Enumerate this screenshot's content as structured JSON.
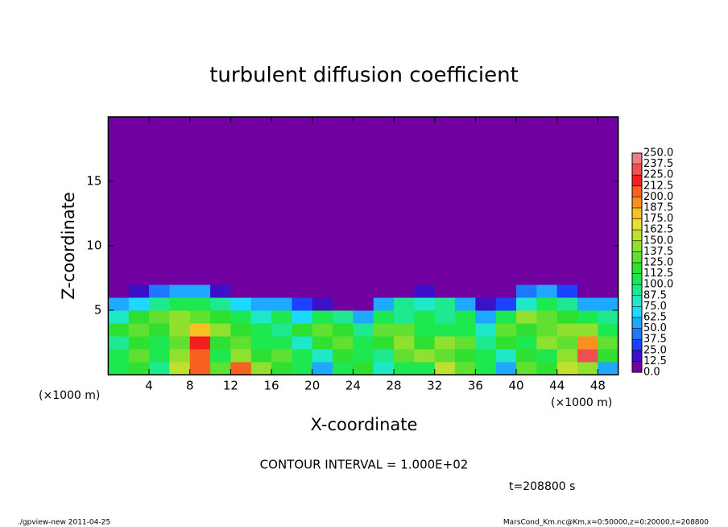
{
  "chart_data": {
    "type": "contour",
    "title": "turbulent diffusion coefficient",
    "xlabel": "X-coordinate",
    "ylabel": "Z-coordinate",
    "x_unit": "(×1000 m)",
    "y_unit": "(×1000 m)",
    "contour_note": "CONTOUR INTERVAL = 1.000E+02",
    "time_note": "t=208800 s",
    "footer_left": "./gpview-new  2011-04-25",
    "footer_right": "MarsCond_Km.nc@Km,x=0:50000,z=0:20000,t=208800",
    "xlim": [
      0,
      50
    ],
    "ylim": [
      0,
      20
    ],
    "xticks": [
      4,
      8,
      12,
      16,
      20,
      24,
      28,
      32,
      36,
      40,
      44,
      48
    ],
    "yticks": [
      5,
      10,
      15
    ],
    "x_edges": [
      0,
      2,
      4,
      6,
      8,
      10,
      12,
      14,
      16,
      18,
      20,
      22,
      24,
      26,
      28,
      30,
      32,
      34,
      36,
      38,
      40,
      42,
      44,
      46,
      48,
      50
    ],
    "z_edges": [
      0,
      1,
      2,
      3,
      4,
      5,
      6,
      7,
      20
    ],
    "values": [
      [
        110,
        120,
        90,
        150,
        200,
        130,
        200,
        140,
        120,
        100,
        60,
        110,
        120,
        80,
        100,
        110,
        150,
        130,
        110,
        60,
        130,
        120,
        150,
        140,
        60
      ],
      [
        100,
        130,
        110,
        140,
        210,
        110,
        140,
        120,
        130,
        110,
        80,
        120,
        110,
        90,
        130,
        140,
        130,
        120,
        100,
        80,
        120,
        110,
        140,
        230,
        120
      ],
      [
        90,
        120,
        110,
        130,
        220,
        120,
        130,
        110,
        100,
        80,
        120,
        130,
        100,
        120,
        140,
        120,
        140,
        130,
        90,
        120,
        110,
        140,
        130,
        190,
        130
      ],
      [
        120,
        130,
        120,
        140,
        180,
        140,
        120,
        100,
        90,
        120,
        130,
        120,
        90,
        130,
        130,
        110,
        100,
        110,
        80,
        130,
        120,
        130,
        140,
        140,
        110
      ],
      [
        80,
        120,
        130,
        140,
        130,
        120,
        110,
        80,
        100,
        70,
        100,
        90,
        60,
        100,
        90,
        100,
        90,
        110,
        60,
        100,
        140,
        130,
        120,
        110,
        90
      ],
      [
        60,
        70,
        90,
        110,
        100,
        90,
        70,
        60,
        50,
        30,
        20,
        10,
        10,
        60,
        90,
        80,
        90,
        60,
        20,
        30,
        80,
        100,
        90,
        60,
        50
      ],
      [
        10,
        20,
        40,
        60,
        50,
        20,
        10,
        0,
        0,
        0,
        0,
        0,
        0,
        0,
        0,
        20,
        0,
        0,
        0,
        10,
        40,
        50,
        30,
        0,
        0
      ],
      [
        0,
        0,
        0,
        0,
        0,
        0,
        0,
        0,
        0,
        0,
        0,
        0,
        0,
        0,
        0,
        0,
        0,
        0,
        0,
        0,
        0,
        0,
        0,
        0,
        0
      ]
    ],
    "levels": [
      {
        "value": 0,
        "label": "0.0"
      },
      {
        "value": 12.5,
        "label": "12.5"
      },
      {
        "value": 25,
        "label": "25.0"
      },
      {
        "value": 37.5,
        "label": "37.5"
      },
      {
        "value": 50,
        "label": "50.0"
      },
      {
        "value": 62.5,
        "label": "62.5"
      },
      {
        "value": 75,
        "label": "75.0"
      },
      {
        "value": 87.5,
        "label": "87.5"
      },
      {
        "value": 100,
        "label": "100.0"
      },
      {
        "value": 112.5,
        "label": "112.5"
      },
      {
        "value": 125,
        "label": "125.0"
      },
      {
        "value": 137.5,
        "label": "137.5"
      },
      {
        "value": 150,
        "label": "150.0"
      },
      {
        "value": 162.5,
        "label": "162.5"
      },
      {
        "value": 175,
        "label": "175.0"
      },
      {
        "value": 187.5,
        "label": "187.5"
      },
      {
        "value": 200,
        "label": "200.0"
      },
      {
        "value": 212.5,
        "label": "212.5"
      },
      {
        "value": 225,
        "label": "225.0"
      },
      {
        "value": 237.5,
        "label": "237.5"
      },
      {
        "value": 250,
        "label": "250.0"
      }
    ],
    "colors": [
      "#7000a0",
      "#3c10c8",
      "#1e40ff",
      "#1e78ff",
      "#1ea8ff",
      "#1ed8ff",
      "#1ee8c8",
      "#1ee890",
      "#1ee850",
      "#30e030",
      "#60e030",
      "#90e030",
      "#c0e030",
      "#e8e030",
      "#f8c020",
      "#f89020",
      "#f86020",
      "#f02020",
      "#f05050",
      "#f08080"
    ]
  }
}
